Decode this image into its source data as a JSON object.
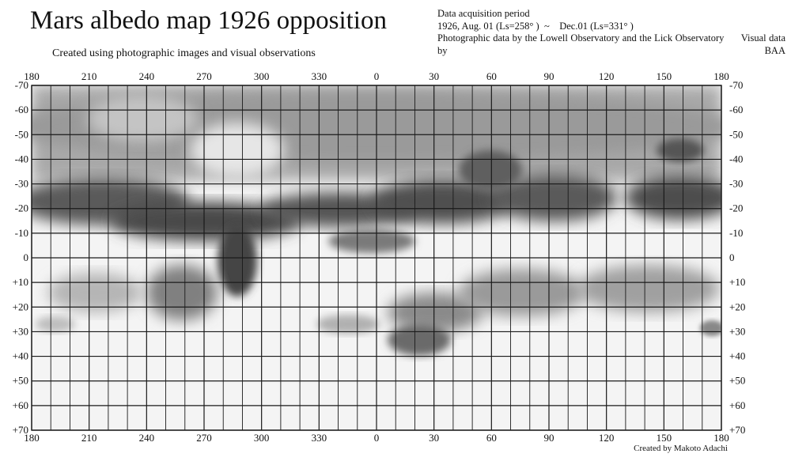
{
  "title": "Mars albedo map 1926 opposition",
  "subtitle": "Created using photographic images and visual observations",
  "info": {
    "heading": "Data acquisition period",
    "period": "1926, Aug. 01 (Ls=258° )  ~    Dec.01 (Ls=331° )",
    "sources": "Photographic data by the Lowell Observatory and the Lick Observatory      Visual data by BAA"
  },
  "credit": "Created by Makoto Adachi",
  "axes": {
    "longitude_labels": [
      "180",
      "210",
      "240",
      "270",
      "300",
      "330",
      "0",
      "30",
      "60",
      "90",
      "120",
      "150",
      "180"
    ],
    "latitude_labels": [
      "-70",
      "-60",
      "-50",
      "-40",
      "-30",
      "-20",
      "-10",
      "0",
      "+10",
      "+20",
      "+30",
      "+40",
      "+50",
      "+60",
      "+70"
    ],
    "latitude_values": [
      -70,
      -60,
      -50,
      -40,
      -30,
      -20,
      -10,
      0,
      10,
      20,
      30,
      40,
      50,
      60,
      70
    ]
  },
  "colors": {
    "grid": "#1a1a1a",
    "dark_marking": "#3a3a3a",
    "mid_marking": "#8a8a8a",
    "light_region": "#e6e6e6"
  }
}
